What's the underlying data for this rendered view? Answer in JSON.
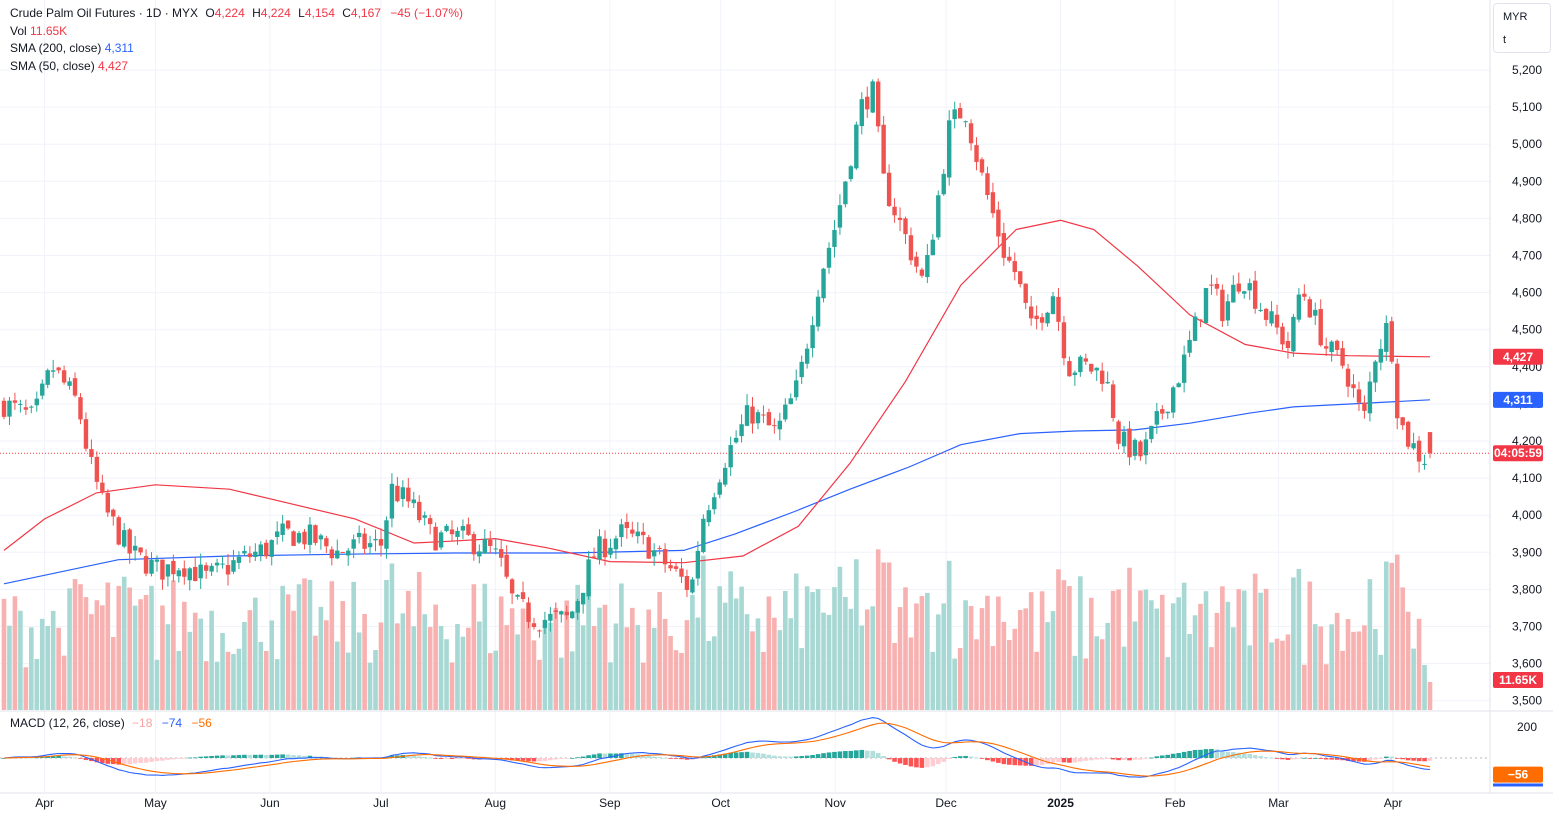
{
  "legend": {
    "title": "Crude Palm Oil Futures · 1D · MYX",
    "open_label": "O",
    "open": "4,224",
    "high_label": "H",
    "high": "4,224",
    "low_label": "L",
    "low": "4,154",
    "close_label": "C",
    "close": "4,167",
    "change": "−45 (−1.07%)",
    "vol_label": "Vol",
    "vol": "11.65K",
    "sma200_label": "SMA (200, close)",
    "sma200": "4,311",
    "sma50_label": "SMA (50, close)",
    "sma50": "4,427"
  },
  "unit_selector": {
    "currency": "MYR",
    "unit": "t"
  },
  "macd_legend": {
    "label": "MACD (12, 26, close)",
    "hist": "−18",
    "macd": "−74",
    "signal": "−56"
  },
  "tags": {
    "sma50": "4,427",
    "sma200": "4,311",
    "countdown": "04:05:59",
    "volume": "11.65K",
    "macd_hist": "−18",
    "macd_signal": "−56"
  },
  "colors": {
    "up": "#26a69a",
    "down": "#ef5350",
    "sma50": "#f23645",
    "sma200": "#2962ff",
    "macd": "#2962ff",
    "signal": "#ff6d00",
    "countdown_tag": "#f23645"
  },
  "chart_data": {
    "type": "candlestick",
    "symbol": "Crude Palm Oil Futures",
    "interval": "1D",
    "exchange": "MYX",
    "y_axis": {
      "ticks": [
        "5,200",
        "5,100",
        "5,000",
        "4,900",
        "4,800",
        "4,700",
        "4,600",
        "4,500",
        "4,400",
        "4,300",
        "4,200",
        "4,100",
        "4,000",
        "3,900",
        "3,800",
        "3,700",
        "3,600",
        "3,500"
      ],
      "range": [
        3480,
        5250
      ]
    },
    "x_axis": {
      "ticks": [
        "Apr",
        "May",
        "Jun",
        "Jul",
        "Aug",
        "Sep",
        "Oct",
        "Nov",
        "Dec",
        "2025",
        "Feb",
        "Mar",
        "Apr"
      ]
    },
    "series": [
      {
        "name": "Price",
        "kind": "candles",
        "anchors": [
          [
            "2024-03-21",
            4300
          ],
          [
            "2024-03-29",
            4260
          ],
          [
            "2024-04-03",
            4400
          ],
          [
            "2024-04-10",
            4300
          ],
          [
            "2024-04-13",
            4150
          ],
          [
            "2024-04-17",
            4020
          ],
          [
            "2024-04-24",
            3900
          ],
          [
            "2024-05-02",
            3850
          ],
          [
            "2024-05-08",
            3870
          ],
          [
            "2024-05-15",
            3830
          ],
          [
            "2024-05-24",
            3880
          ],
          [
            "2024-05-31",
            3910
          ],
          [
            "2024-06-05",
            3950
          ],
          [
            "2024-06-12",
            3940
          ],
          [
            "2024-06-19",
            3900
          ],
          [
            "2024-06-25",
            3920
          ],
          [
            "2024-07-01",
            3920
          ],
          [
            "2024-07-04",
            4070
          ],
          [
            "2024-07-09",
            4030
          ],
          [
            "2024-07-15",
            3940
          ],
          [
            "2024-07-23",
            3940
          ],
          [
            "2024-07-30",
            3910
          ],
          [
            "2024-08-02",
            3880
          ],
          [
            "2024-08-06",
            3760
          ],
          [
            "2024-08-12",
            3720
          ],
          [
            "2024-08-21",
            3720
          ],
          [
            "2024-08-28",
            3900
          ],
          [
            "2024-09-04",
            3950
          ],
          [
            "2024-09-11",
            3920
          ],
          [
            "2024-09-18",
            3850
          ],
          [
            "2024-09-23",
            3800
          ],
          [
            "2024-09-26",
            3990
          ],
          [
            "2024-10-02",
            4150
          ],
          [
            "2024-10-09",
            4280
          ],
          [
            "2024-10-16",
            4220
          ],
          [
            "2024-10-22",
            4350
          ],
          [
            "2024-10-28",
            4650
          ],
          [
            "2024-11-01",
            4780
          ],
          [
            "2024-11-08",
            5100
          ],
          [
            "2024-11-11",
            5150
          ],
          [
            "2024-11-14",
            4900
          ],
          [
            "2024-11-20",
            4750
          ],
          [
            "2024-11-25",
            4620
          ],
          [
            "2024-12-02",
            5050
          ],
          [
            "2024-12-06",
            5100
          ],
          [
            "2024-12-11",
            4900
          ],
          [
            "2024-12-17",
            4700
          ],
          [
            "2024-12-20",
            4650
          ],
          [
            "2024-12-24",
            4500
          ],
          [
            "2024-12-30",
            4600
          ],
          [
            "2025-01-03",
            4400
          ],
          [
            "2025-01-08",
            4400
          ],
          [
            "2025-01-13",
            4380
          ],
          [
            "2025-01-17",
            4200
          ],
          [
            "2025-01-23",
            4160
          ],
          [
            "2025-02-03",
            4400
          ],
          [
            "2025-02-10",
            4620
          ],
          [
            "2025-02-14",
            4550
          ],
          [
            "2025-02-19",
            4650
          ],
          [
            "2025-02-25",
            4550
          ],
          [
            "2025-03-04",
            4450
          ],
          [
            "2025-03-07",
            4620
          ],
          [
            "2025-03-14",
            4450
          ],
          [
            "2025-03-19",
            4400
          ],
          [
            "2025-03-24",
            4250
          ],
          [
            "2025-03-27",
            4430
          ],
          [
            "2025-03-31",
            4520
          ],
          [
            "2025-04-02",
            4300
          ],
          [
            "2025-04-04",
            4220
          ],
          [
            "2025-04-09",
            4150
          ],
          [
            "2025-04-11",
            4167
          ]
        ],
        "last": {
          "open": 4224,
          "high": 4224,
          "low": 4154,
          "close": 4167,
          "change": -45,
          "change_pct": -1.07
        }
      },
      {
        "name": "SMA (200, close)",
        "kind": "line",
        "points": [
          [
            "2024-03-21",
            3815
          ],
          [
            "2024-04-21",
            3880
          ],
          [
            "2024-05-21",
            3890
          ],
          [
            "2024-06-21",
            3895
          ],
          [
            "2024-07-21",
            3898
          ],
          [
            "2024-08-21",
            3898
          ],
          [
            "2024-09-21",
            3905
          ],
          [
            "2024-10-05",
            3950
          ],
          [
            "2024-10-21",
            4010
          ],
          [
            "2024-11-05",
            4070
          ],
          [
            "2024-11-21",
            4130
          ],
          [
            "2024-12-05",
            4190
          ],
          [
            "2024-12-21",
            4220
          ],
          [
            "2025-01-05",
            4227
          ],
          [
            "2025-01-21",
            4230
          ],
          [
            "2025-02-05",
            4248
          ],
          [
            "2025-02-21",
            4275
          ],
          [
            "2025-03-05",
            4292
          ],
          [
            "2025-03-21",
            4300
          ],
          [
            "2025-04-11",
            4311
          ]
        ]
      },
      {
        "name": "SMA (50, close)",
        "kind": "line",
        "points": [
          [
            "2024-03-21",
            3905
          ],
          [
            "2024-04-01",
            3990
          ],
          [
            "2024-04-15",
            4060
          ],
          [
            "2024-05-01",
            4082
          ],
          [
            "2024-05-21",
            4070
          ],
          [
            "2024-06-07",
            4030
          ],
          [
            "2024-06-24",
            3990
          ],
          [
            "2024-07-10",
            3925
          ],
          [
            "2024-07-20",
            3930
          ],
          [
            "2024-08-01",
            3937
          ],
          [
            "2024-08-15",
            3912
          ],
          [
            "2024-09-01",
            3875
          ],
          [
            "2024-09-21",
            3872
          ],
          [
            "2024-10-07",
            3890
          ],
          [
            "2024-10-22",
            3970
          ],
          [
            "2024-11-05",
            4140
          ],
          [
            "2024-11-20",
            4360
          ],
          [
            "2024-12-05",
            4620
          ],
          [
            "2024-12-20",
            4770
          ],
          [
            "2025-01-01",
            4795
          ],
          [
            "2025-01-10",
            4770
          ],
          [
            "2025-01-22",
            4670
          ],
          [
            "2025-02-05",
            4540
          ],
          [
            "2025-02-20",
            4460
          ],
          [
            "2025-03-05",
            4437
          ],
          [
            "2025-03-20",
            4430
          ],
          [
            "2025-04-11",
            4427
          ]
        ]
      },
      {
        "name": "Vol",
        "kind": "volume",
        "last": "11.65K"
      },
      {
        "name": "MACD (12, 26, close)",
        "kind": "macd",
        "hist": -18,
        "macd": -74,
        "signal": -56
      }
    ],
    "macd_axis": {
      "ticks": [
        "200"
      ]
    },
    "grid": true,
    "legend_position": "top-left"
  }
}
